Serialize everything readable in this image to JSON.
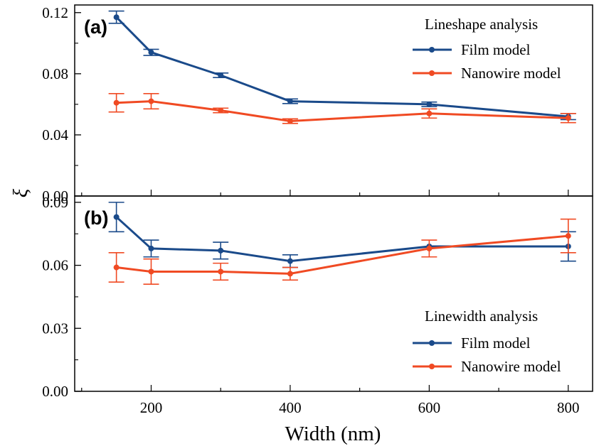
{
  "chart_data": [
    {
      "type": "line",
      "panel_label": "(a)",
      "x": [
        150,
        200,
        300,
        400,
        600,
        800
      ],
      "xlim": [
        90,
        835
      ],
      "ylim": [
        0,
        0.125
      ],
      "yticks": [
        0.0,
        0.04,
        0.08,
        0.12
      ],
      "ytick_labels": [
        "0.00",
        "0.04",
        "0.08",
        "0.12"
      ],
      "legend_title": "Lineshape analysis",
      "legend_position": "top-right",
      "series": [
        {
          "name": "Film model",
          "color": "#1a4a8a",
          "values": [
            0.117,
            0.094,
            0.079,
            0.062,
            0.06,
            0.052
          ],
          "errors": [
            0.004,
            0.002,
            0.0015,
            0.0015,
            0.0015,
            0.002
          ]
        },
        {
          "name": "Nanowire model",
          "color": "#f04a23",
          "values": [
            0.061,
            0.062,
            0.056,
            0.049,
            0.054,
            0.051
          ],
          "errors": [
            0.006,
            0.005,
            0.0015,
            0.0015,
            0.003,
            0.003
          ]
        }
      ]
    },
    {
      "type": "line",
      "panel_label": "(b)",
      "x": [
        150,
        200,
        300,
        400,
        600,
        800
      ],
      "xlim": [
        90,
        835
      ],
      "ylim": [
        0,
        0.093
      ],
      "yticks": [
        0.0,
        0.03,
        0.06,
        0.09
      ],
      "ytick_labels": [
        "0.00",
        "0.03",
        "0.06",
        "0.09"
      ],
      "xticks": [
        200,
        400,
        600,
        800
      ],
      "xtick_labels": [
        "200",
        "400",
        "600",
        "800"
      ],
      "legend_title": "Linewidth analysis",
      "legend_position": "bottom-right",
      "series": [
        {
          "name": "Film model",
          "color": "#1a4a8a",
          "values": [
            0.083,
            0.068,
            0.067,
            0.062,
            0.069,
            0.069
          ],
          "errors": [
            0.007,
            0.004,
            0.004,
            0.003,
            0.0,
            0.007
          ]
        },
        {
          "name": "Nanowire model",
          "color": "#f04a23",
          "values": [
            0.059,
            0.057,
            0.057,
            0.056,
            0.068,
            0.074
          ],
          "errors": [
            0.007,
            0.006,
            0.004,
            0.003,
            0.004,
            0.008
          ]
        }
      ]
    }
  ],
  "xlabel": "Width (nm)",
  "ylabel": "ξ"
}
